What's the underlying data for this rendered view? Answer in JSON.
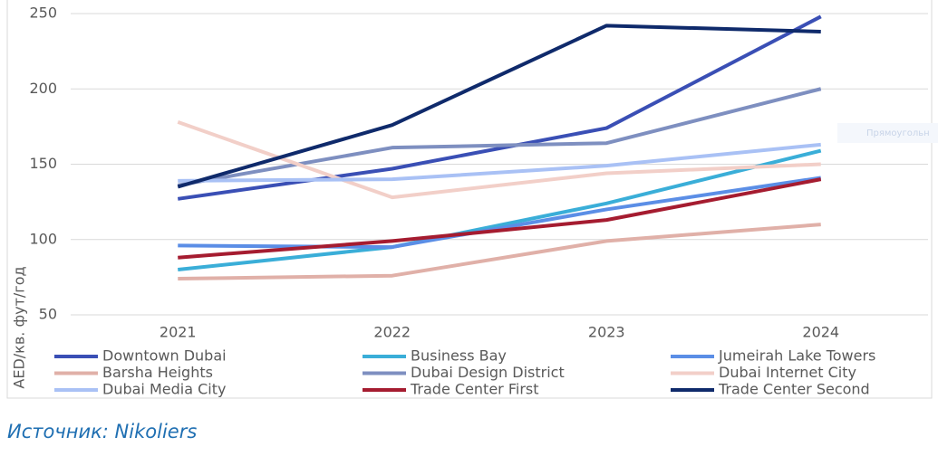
{
  "chart_data": {
    "type": "line",
    "y_label": "AED/кв. фут/год",
    "source": "Источник: Nikoliers",
    "annotation": "Прямоугольн",
    "categories": [
      "2021",
      "2022",
      "2023",
      "2024"
    ],
    "series": [
      {
        "name": "Downtown Dubai",
        "color": "#3a4fb5",
        "values": [
          127,
          147,
          174,
          248
        ]
      },
      {
        "name": "Business Bay",
        "color": "#3aaed8",
        "values": [
          80,
          95,
          124,
          159
        ]
      },
      {
        "name": "Jumeirah Lake Towers",
        "color": "#5b8ee6",
        "values": [
          96,
          95,
          120,
          141
        ]
      },
      {
        "name": "Barsha Heights",
        "color": "#e0b0a8",
        "values": [
          74,
          76,
          99,
          110
        ]
      },
      {
        "name": "Dubai Design District",
        "color": "#7e8fc0",
        "values": [
          136,
          161,
          164,
          200
        ]
      },
      {
        "name": "Dubai Internet City",
        "color": "#f2cfc8",
        "values": [
          178,
          128,
          144,
          150
        ]
      },
      {
        "name": "Dubai Media City",
        "color": "#a9c1f5",
        "values": [
          139,
          140,
          149,
          163
        ]
      },
      {
        "name": "Trade Center First",
        "color": "#a51c30",
        "values": [
          88,
          99,
          113,
          140
        ]
      },
      {
        "name": "Trade Center Second",
        "color": "#0f2a6b",
        "values": [
          135,
          176,
          242,
          238
        ]
      }
    ],
    "ylim": [
      50,
      250
    ],
    "yticks": [
      50,
      100,
      150,
      200,
      250
    ],
    "grid": true,
    "legend": "bottom"
  }
}
